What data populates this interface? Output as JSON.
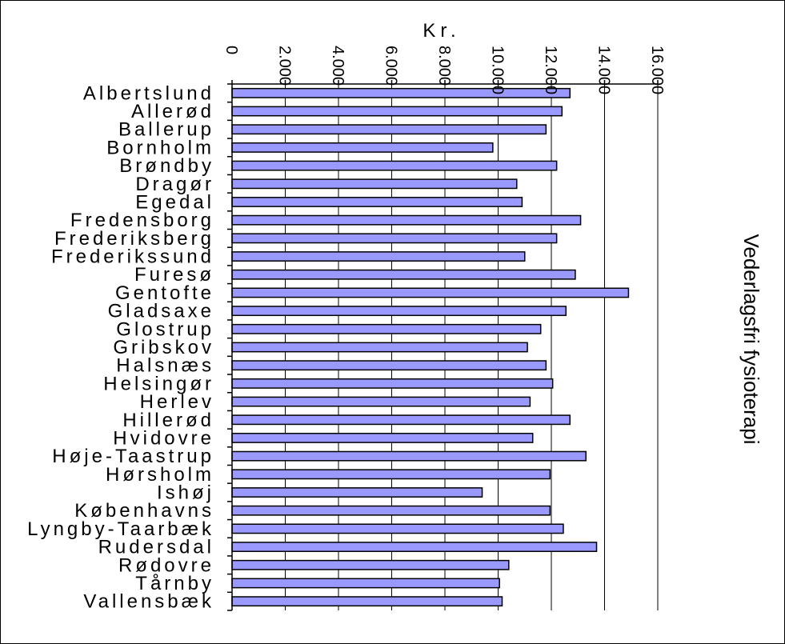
{
  "chart_data": {
    "type": "bar",
    "orientation": "horizontal",
    "title": "Vederlagsfri fysioterapi",
    "xlabel": "Kr.",
    "ylabel": "",
    "xlim": [
      0,
      16000
    ],
    "ticks": [
      0,
      2000,
      4000,
      6000,
      8000,
      10000,
      12000,
      14000,
      16000
    ],
    "tick_labels": [
      "0",
      "2.000",
      "4.000",
      "6.000",
      "8.000",
      "10.000",
      "12.000",
      "14.000",
      "16.000"
    ],
    "grid": "vertical",
    "bar_color": "#9999ff",
    "categories": [
      "Albertslund",
      "Allerød",
      "Ballerup",
      "Bornholm",
      "Brøndby",
      "Dragør",
      "Egedal",
      "Fredensborg",
      "Frederiksberg",
      "Frederikssund",
      "Furesø",
      "Gentofte",
      "Gladsaxe",
      "Glostrup",
      "Gribskov",
      "Halsnæs",
      "Helsingør",
      "Herlev",
      "Hillerød",
      "Hvidovre",
      "Høje-Taastrup",
      "Hørsholm",
      "Ishøj",
      "Københavns",
      "Lyngby-Taarbæk",
      "Rudersdal",
      "Rødovre",
      "Tårnby",
      "Vallensbæk"
    ],
    "values": [
      12700,
      12400,
      11800,
      9800,
      12200,
      10700,
      10900,
      13100,
      12200,
      11000,
      12900,
      14900,
      12550,
      11600,
      11100,
      11800,
      12050,
      11200,
      12700,
      11300,
      13300,
      11950,
      9400,
      11950,
      12450,
      13700,
      10400,
      10050,
      10150
    ]
  }
}
